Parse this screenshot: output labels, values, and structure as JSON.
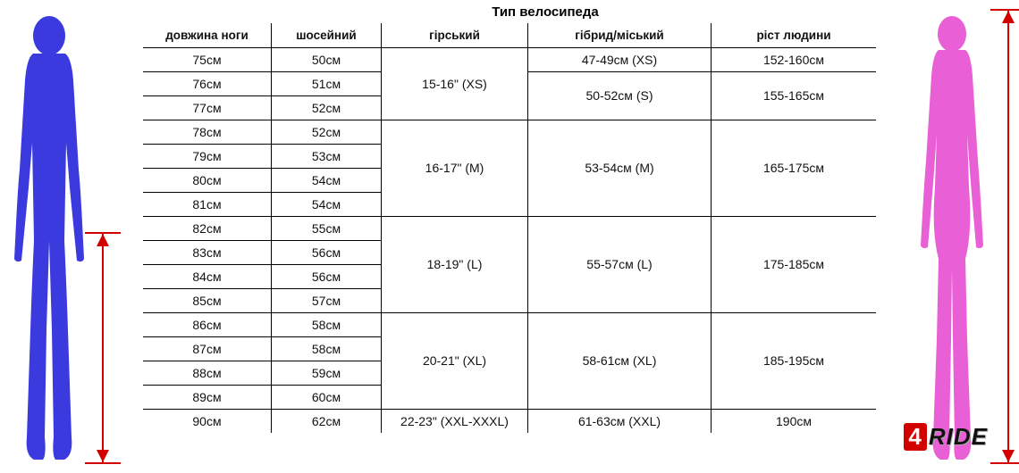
{
  "colors": {
    "male_fill": "#3a3adf",
    "female_fill": "#e85fd6",
    "arrow": "#d30000",
    "border": "#000000",
    "background": "#ffffff",
    "logo_red": "#d30000"
  },
  "title": "Тип велосипеда",
  "headers": {
    "leg": "довжина ноги",
    "road": "шосейний",
    "mountain": "гірський",
    "hybrid": "гібрид/міський",
    "height": "ріст людини"
  },
  "groups": [
    {
      "rows": [
        {
          "leg": "75см",
          "road": "50см",
          "hybrid": "47-49см (XS)",
          "hybrid_span": 1,
          "height": "152-160см",
          "height_span": 1
        },
        {
          "leg": "76см",
          "road": "51см",
          "hybrid": "50-52см (S)",
          "hybrid_span": 2,
          "height": "155-165см",
          "height_span": 2
        },
        {
          "leg": "77см",
          "road": "52см"
        }
      ],
      "mountain": "15-16\" (XS)"
    },
    {
      "rows": [
        {
          "leg": "78см",
          "road": "52см"
        },
        {
          "leg": "79см",
          "road": "53см"
        },
        {
          "leg": "80см",
          "road": "54см"
        },
        {
          "leg": "81см",
          "road": "54см"
        }
      ],
      "mountain": "16-17\" (M)",
      "hybrid": "53-54см (M)",
      "height": "165-175см"
    },
    {
      "rows": [
        {
          "leg": "82см",
          "road": "55см"
        },
        {
          "leg": "83см",
          "road": "56см"
        },
        {
          "leg": "84см",
          "road": "56см"
        },
        {
          "leg": "85см",
          "road": "57см"
        }
      ],
      "mountain": "18-19\" (L)",
      "hybrid": "55-57см (L)",
      "height": "175-185см"
    },
    {
      "rows": [
        {
          "leg": "86см",
          "road": "58см"
        },
        {
          "leg": "87см",
          "road": "58см"
        },
        {
          "leg": "88см",
          "road": "59см"
        },
        {
          "leg": "89см",
          "road": "60см"
        }
      ],
      "mountain": "20-21\" (XL)",
      "hybrid": "58-61см (XL)",
      "height": "185-195см"
    },
    {
      "rows": [
        {
          "leg": "90см",
          "road": "62см"
        }
      ],
      "mountain": "22-23\" (XXL-XXXL)",
      "hybrid": "61-63см (XXL)",
      "height": "190см"
    }
  ],
  "logo": {
    "num": "4",
    "text": "RIDE"
  }
}
